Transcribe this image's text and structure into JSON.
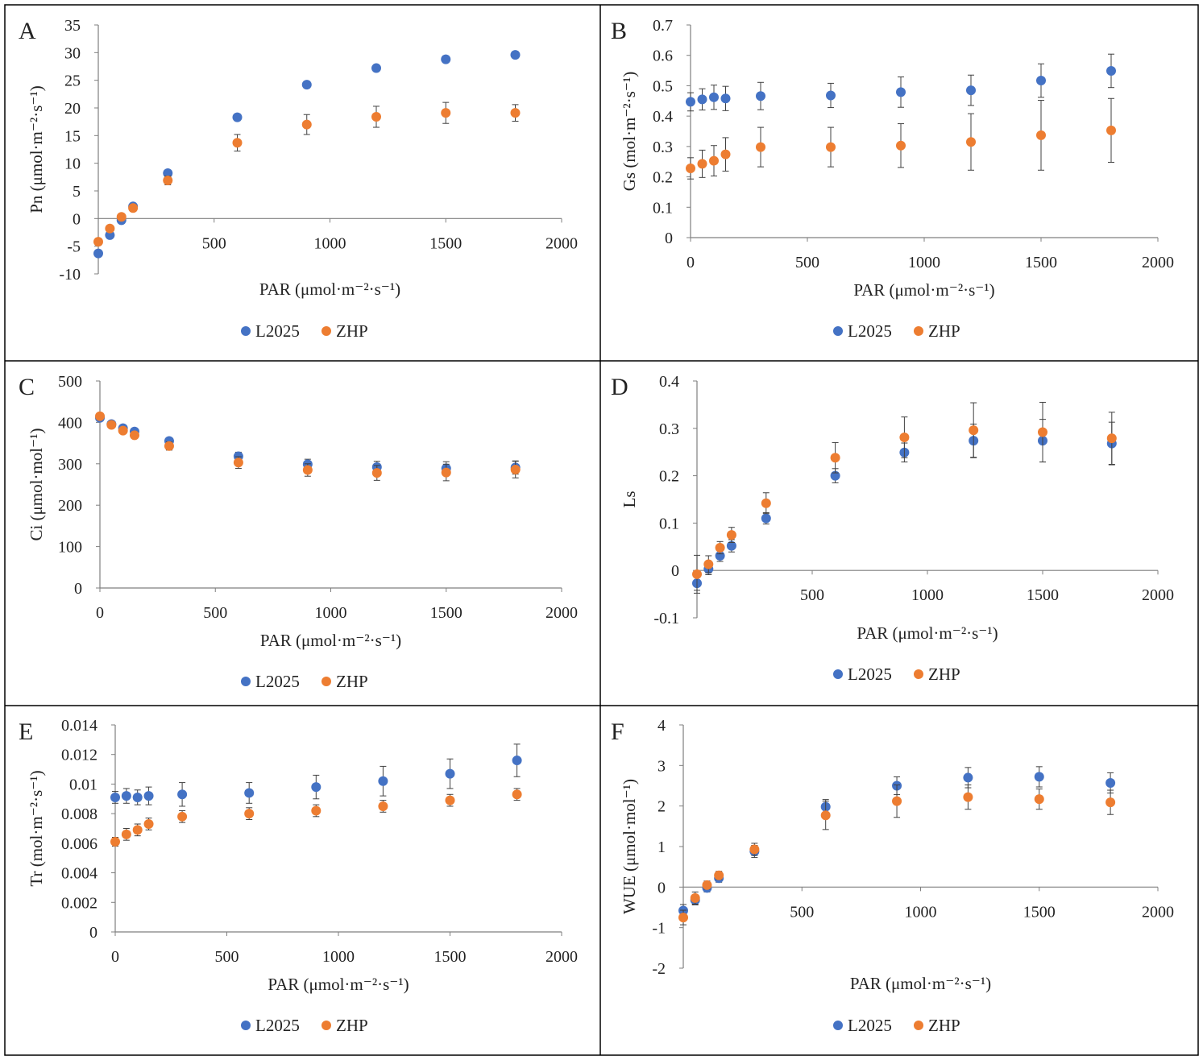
{
  "legend": {
    "series_names": [
      "L2025",
      "ZHP"
    ]
  },
  "colors": {
    "L2025": "#4472C4",
    "ZHP": "#ED7D31",
    "axis": "#7f7f7f",
    "error_bar": "#404040",
    "frame": "#000000"
  },
  "chart_data": [
    {
      "type": "scatter",
      "panel_label": "A",
      "xlabel": "PAR (μmol·m⁻²·s⁻¹)",
      "ylabel": "Pn (μmol·m⁻²·s⁻¹)",
      "xlim": [
        0,
        2000
      ],
      "ylim": [
        -10,
        35
      ],
      "xticks": [
        500,
        1000,
        1500,
        2000
      ],
      "yticks": [
        -10,
        -5,
        0,
        5,
        10,
        15,
        20,
        25,
        30,
        35
      ],
      "x": [
        0,
        50,
        100,
        150,
        300,
        600,
        900,
        1200,
        1500,
        1800
      ],
      "series": [
        {
          "name": "L2025",
          "values": [
            -6.3,
            -3.0,
            -0.3,
            2.2,
            8.2,
            18.3,
            24.2,
            27.2,
            28.8,
            29.6
          ],
          "errors": [
            0.5,
            0.4,
            0.4,
            0.4,
            0.5,
            0.6,
            0.6,
            0.6,
            0.6,
            0.6
          ]
        },
        {
          "name": "ZHP",
          "values": [
            -4.2,
            -1.8,
            0.3,
            1.9,
            6.9,
            13.7,
            17.0,
            18.4,
            19.1,
            19.1
          ],
          "errors": [
            0.6,
            0.5,
            0.5,
            0.6,
            0.8,
            1.5,
            1.8,
            1.9,
            1.9,
            1.5
          ]
        }
      ]
    },
    {
      "type": "scatter",
      "panel_label": "B",
      "xlabel": "PAR (μmol·m⁻²·s⁻¹)",
      "ylabel": "Gs (mol·m⁻²·s⁻¹)",
      "xlim": [
        0,
        2000
      ],
      "ylim": [
        0,
        0.7
      ],
      "xticks": [
        0,
        500,
        1000,
        1500,
        2000
      ],
      "yticks": [
        0,
        0.1,
        0.2,
        0.3,
        0.4,
        0.5,
        0.6,
        0.7
      ],
      "x": [
        0,
        50,
        100,
        150,
        300,
        600,
        900,
        1200,
        1500,
        1800
      ],
      "series": [
        {
          "name": "L2025",
          "values": [
            0.447,
            0.455,
            0.462,
            0.458,
            0.466,
            0.468,
            0.479,
            0.485,
            0.517,
            0.549
          ],
          "errors": [
            0.03,
            0.035,
            0.04,
            0.04,
            0.045,
            0.04,
            0.05,
            0.05,
            0.055,
            0.055
          ]
        },
        {
          "name": "ZHP",
          "values": [
            0.228,
            0.243,
            0.253,
            0.274,
            0.298,
            0.298,
            0.303,
            0.315,
            0.337,
            0.353
          ],
          "errors": [
            0.035,
            0.045,
            0.05,
            0.055,
            0.065,
            0.065,
            0.072,
            0.093,
            0.115,
            0.105
          ]
        }
      ]
    },
    {
      "type": "scatter",
      "panel_label": "C",
      "xlabel": "PAR (μmol·m⁻²·s⁻¹)",
      "ylabel": "Ci (μmol·mol⁻¹)",
      "xlim": [
        0,
        2000
      ],
      "ylim": [
        0,
        500
      ],
      "xticks": [
        0,
        500,
        1000,
        1500,
        2000
      ],
      "yticks": [
        0,
        100,
        200,
        300,
        400,
        500
      ],
      "x": [
        0,
        50,
        100,
        150,
        300,
        600,
        900,
        1200,
        1500,
        1800
      ],
      "series": [
        {
          "name": "L2025",
          "values": [
            411,
            396,
            386,
            378,
            355,
            318,
            299,
            292,
            289,
            291
          ],
          "errors": [
            6,
            6,
            6,
            7,
            8,
            10,
            12,
            14,
            16,
            16
          ]
        },
        {
          "name": "ZHP",
          "values": [
            415,
            394,
            380,
            369,
            343,
            303,
            285,
            278,
            279,
            286
          ],
          "errors": [
            6,
            6,
            7,
            8,
            10,
            14,
            15,
            18,
            20,
            20
          ]
        }
      ]
    },
    {
      "type": "scatter",
      "panel_label": "D",
      "xlabel": "PAR (μmol·m⁻²·s⁻¹)",
      "ylabel": "Ls",
      "xlim": [
        0,
        2000
      ],
      "ylim": [
        -0.1,
        0.4
      ],
      "xticks": [
        500,
        1000,
        1500,
        2000
      ],
      "yticks": [
        -0.1,
        0,
        0.1,
        0.2,
        0.3,
        0.4
      ],
      "x": [
        0,
        50,
        100,
        150,
        300,
        600,
        900,
        1200,
        1500,
        1800
      ],
      "series": [
        {
          "name": "L2025",
          "values": [
            -0.027,
            0.003,
            0.031,
            0.052,
            0.11,
            0.2,
            0.249,
            0.274,
            0.274,
            0.268
          ],
          "errors": [
            0.015,
            0.012,
            0.012,
            0.013,
            0.012,
            0.015,
            0.02,
            0.035,
            0.045,
            0.045
          ]
        },
        {
          "name": "ZHP",
          "values": [
            -0.008,
            0.013,
            0.048,
            0.075,
            0.142,
            0.238,
            0.281,
            0.296,
            0.292,
            0.279
          ],
          "errors": [
            0.04,
            0.018,
            0.013,
            0.016,
            0.022,
            0.032,
            0.043,
            0.058,
            0.063,
            0.055
          ]
        }
      ]
    },
    {
      "type": "scatter",
      "panel_label": "E",
      "xlabel": "PAR (μmol·m⁻²·s⁻¹)",
      "ylabel": "Tr (mol·m⁻²·s⁻¹)",
      "xlim": [
        0,
        2000
      ],
      "ylim": [
        0,
        0.014
      ],
      "xticks": [
        0,
        500,
        1000,
        1500,
        2000
      ],
      "yticks": [
        0,
        0.002,
        0.004,
        0.006,
        0.008,
        0.01,
        0.012,
        0.014
      ],
      "x": [
        0,
        50,
        100,
        150,
        300,
        600,
        900,
        1200,
        1500,
        1800
      ],
      "series": [
        {
          "name": "L2025",
          "values": [
            0.0091,
            0.0092,
            0.0091,
            0.0092,
            0.0093,
            0.0094,
            0.0098,
            0.0102,
            0.0107,
            0.0116
          ],
          "errors": [
            0.0004,
            0.0005,
            0.0005,
            0.0006,
            0.0008,
            0.0007,
            0.0008,
            0.001,
            0.001,
            0.0011
          ]
        },
        {
          "name": "ZHP",
          "values": [
            0.0061,
            0.0066,
            0.0069,
            0.0073,
            0.0078,
            0.008,
            0.0082,
            0.0085,
            0.0089,
            0.0093
          ],
          "errors": [
            0.0003,
            0.0004,
            0.0004,
            0.0004,
            0.0004,
            0.0004,
            0.0004,
            0.0004,
            0.0004,
            0.0004
          ]
        }
      ]
    },
    {
      "type": "scatter",
      "panel_label": "F",
      "xlabel": "PAR (μmol·m⁻²·s⁻¹)",
      "ylabel": "WUE (μmol·mol⁻¹)",
      "xlim": [
        0,
        2000
      ],
      "ylim": [
        -2,
        4
      ],
      "xticks": [
        500,
        1000,
        1500,
        2000
      ],
      "yticks": [
        -2,
        -1,
        0,
        1,
        2,
        3,
        4
      ],
      "x": [
        0,
        50,
        100,
        150,
        300,
        600,
        900,
        1200,
        1500,
        1800
      ],
      "series": [
        {
          "name": "L2025",
          "values": [
            -0.58,
            -0.32,
            -0.02,
            0.22,
            0.88,
            1.98,
            2.5,
            2.7,
            2.72,
            2.57
          ],
          "errors": [
            0.15,
            0.12,
            0.1,
            0.1,
            0.15,
            0.18,
            0.22,
            0.25,
            0.25,
            0.25
          ]
        },
        {
          "name": "ZHP",
          "values": [
            -0.75,
            -0.27,
            0.05,
            0.29,
            0.93,
            1.77,
            2.12,
            2.22,
            2.17,
            2.09
          ],
          "errors": [
            0.18,
            0.15,
            0.1,
            0.1,
            0.15,
            0.35,
            0.4,
            0.3,
            0.25,
            0.3
          ]
        }
      ]
    }
  ]
}
